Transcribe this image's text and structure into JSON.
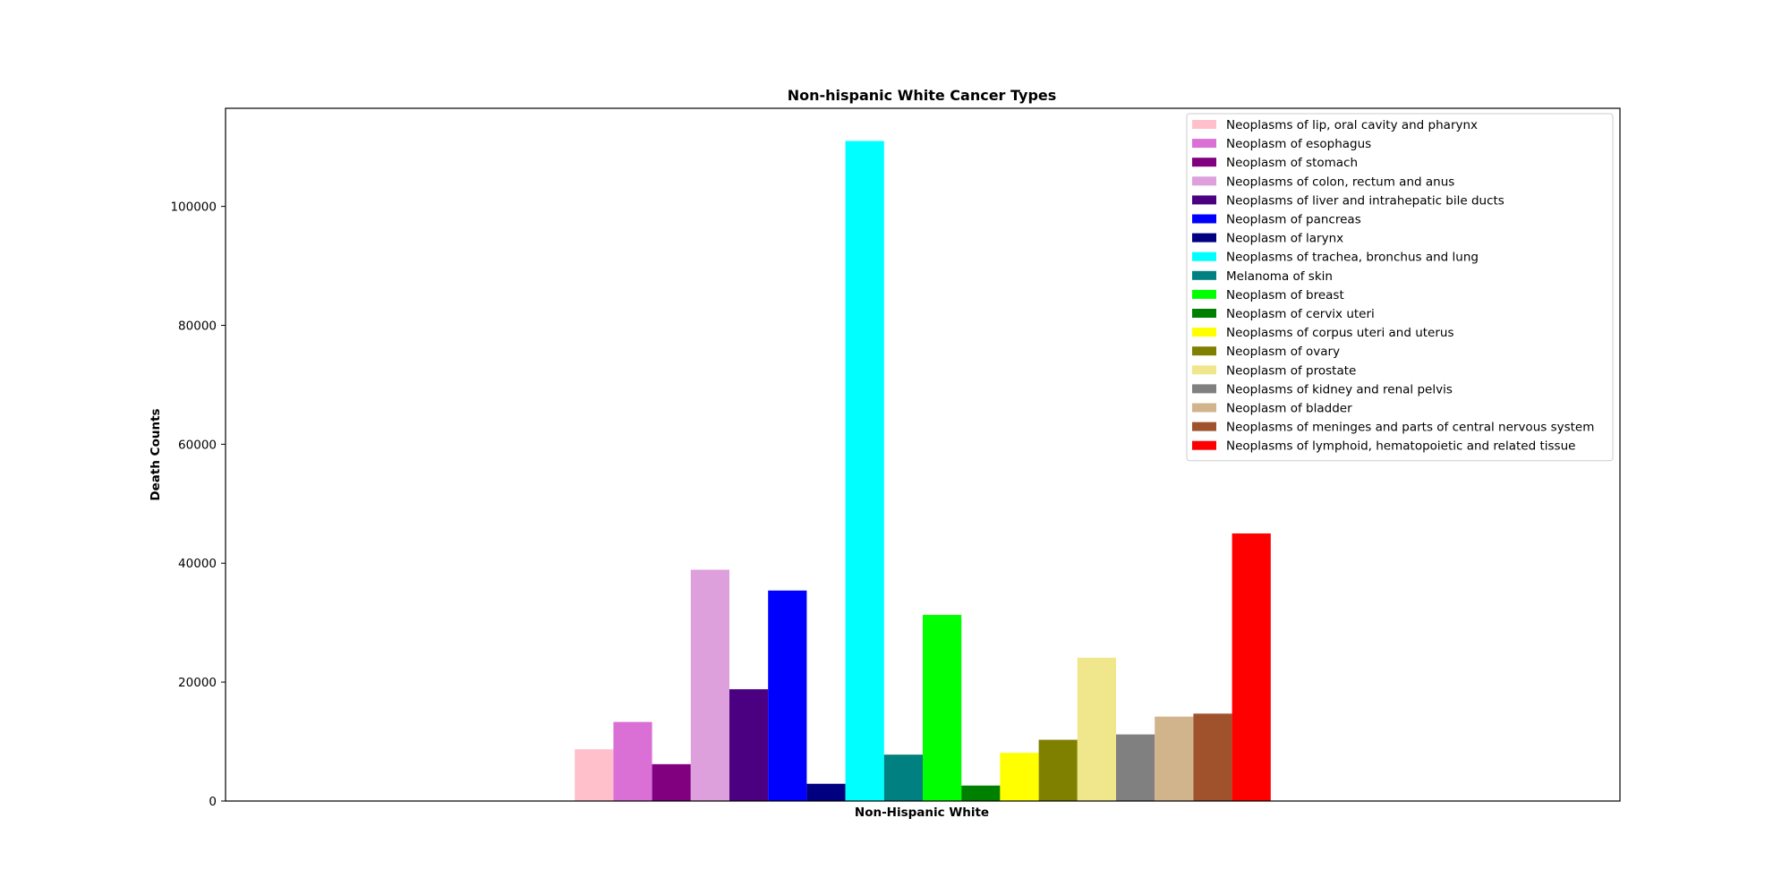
{
  "chart_data": {
    "type": "bar",
    "title": "Non-hispanic White Cancer Types",
    "xlabel": "Non-Hispanic White",
    "ylabel": "Death Counts",
    "ylim": [
      0,
      116500
    ],
    "yticks": [
      0,
      20000,
      40000,
      60000,
      80000,
      100000
    ],
    "grid": false,
    "legend_position": "top-right",
    "categories": [
      "Non-Hispanic White"
    ],
    "series": [
      {
        "name": "Neoplasms of lip, oral cavity and pharynx",
        "color": "#FFC0CB",
        "values": [
          8700
        ]
      },
      {
        "name": "Neoplasm of esophagus",
        "color": "#DA70D6",
        "values": [
          13300
        ]
      },
      {
        "name": "Neoplasm of stomach",
        "color": "#800080",
        "values": [
          6200
        ]
      },
      {
        "name": "Neoplasms of colon, rectum and anus",
        "color": "#DDA0DD",
        "values": [
          38900
        ]
      },
      {
        "name": "Neoplasms of liver and intrahepatic bile ducts",
        "color": "#4B0082",
        "values": [
          18800
        ]
      },
      {
        "name": "Neoplasm of pancreas",
        "color": "#0000FF",
        "values": [
          35400
        ]
      },
      {
        "name": "Neoplasm of larynx",
        "color": "#000080",
        "values": [
          2900
        ]
      },
      {
        "name": "Neoplasms of trachea, bronchus and lung",
        "color": "#00FFFF",
        "values": [
          111000
        ]
      },
      {
        "name": "Melanoma of skin",
        "color": "#008080",
        "values": [
          7800
        ]
      },
      {
        "name": "Neoplasm of breast",
        "color": "#00FF00",
        "values": [
          31300
        ]
      },
      {
        "name": "Neoplasm of cervix uteri",
        "color": "#008000",
        "values": [
          2600
        ]
      },
      {
        "name": "Neoplasms of corpus uteri and uterus",
        "color": "#FFFF00",
        "values": [
          8100
        ]
      },
      {
        "name": "Neoplasm of ovary",
        "color": "#808000",
        "values": [
          10300
        ]
      },
      {
        "name": "Neoplasm of prostate",
        "color": "#F0E68C",
        "values": [
          24100
        ]
      },
      {
        "name": "Neoplasms of kidney and renal pelvis",
        "color": "#808080",
        "values": [
          11200
        ]
      },
      {
        "name": "Neoplasm of bladder",
        "color": "#D2B48C",
        "values": [
          14200
        ]
      },
      {
        "name": "Neoplasms of meninges and parts of central nervous system",
        "color": "#A0522D",
        "values": [
          14700
        ]
      },
      {
        "name": "Neoplasms of lymphoid, hematopoietic and related tissue",
        "color": "#FF0000",
        "values": [
          45000
        ]
      }
    ]
  }
}
